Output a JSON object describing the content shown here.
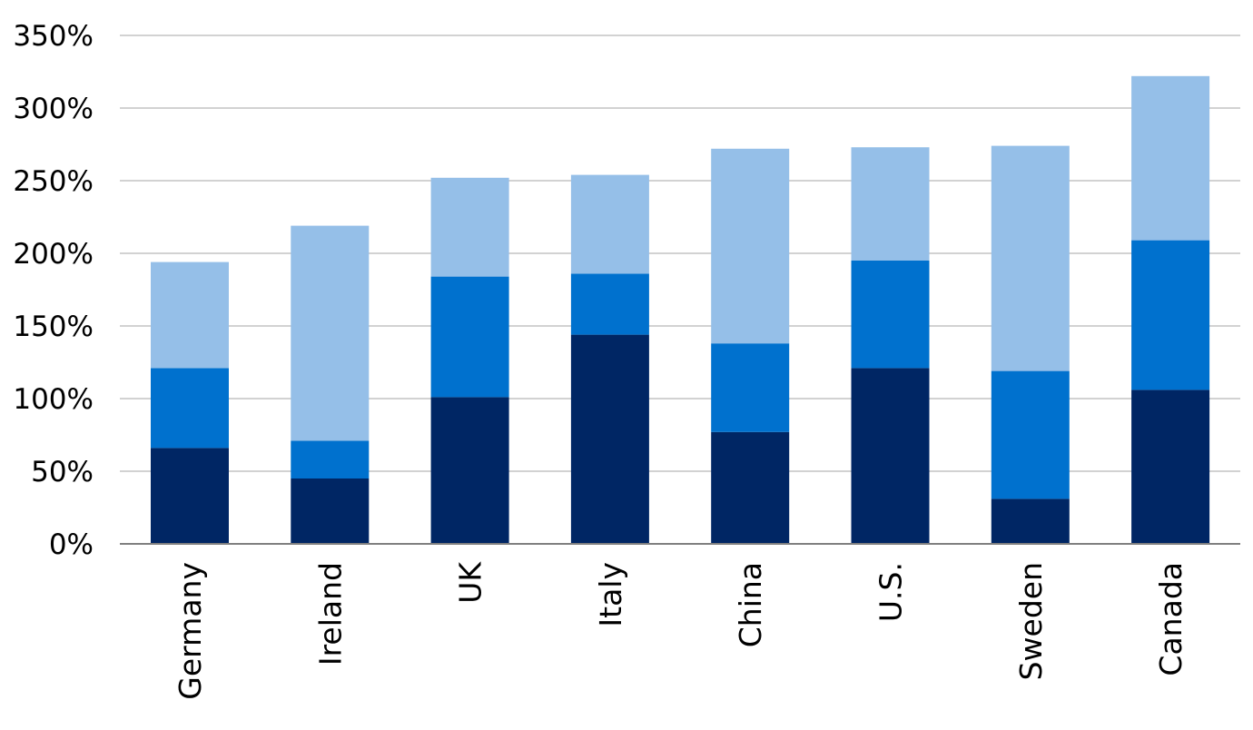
{
  "chart_data": {
    "type": "bar",
    "stacked": true,
    "categories": [
      "Germany",
      "Ireland",
      "UK",
      "Italy",
      "China",
      "U.S.",
      "Sweden",
      "Canada"
    ],
    "series": [
      {
        "values": [
          66,
          45,
          101,
          144,
          77,
          121,
          31,
          106
        ],
        "color": "#002664"
      },
      {
        "values": [
          55,
          26,
          83,
          42,
          61,
          74,
          88,
          103
        ],
        "color": "#0071ce"
      },
      {
        "values": [
          73,
          148,
          68,
          68,
          134,
          78,
          155,
          113
        ],
        "color": "#95bfe8"
      }
    ],
    "ylim": [
      0,
      350
    ],
    "yticks": [
      0,
      50,
      100,
      150,
      200,
      250,
      300,
      350
    ],
    "ytick_labels": [
      "0%",
      "50%",
      "100%",
      "150%",
      "200%",
      "250%",
      "300%",
      "350%"
    ],
    "title": "",
    "xlabel": "",
    "ylabel": "",
    "grid": true,
    "legend": "none",
    "gridline_color": "#a6a6a6",
    "axis_color": "#7f7f7f"
  }
}
